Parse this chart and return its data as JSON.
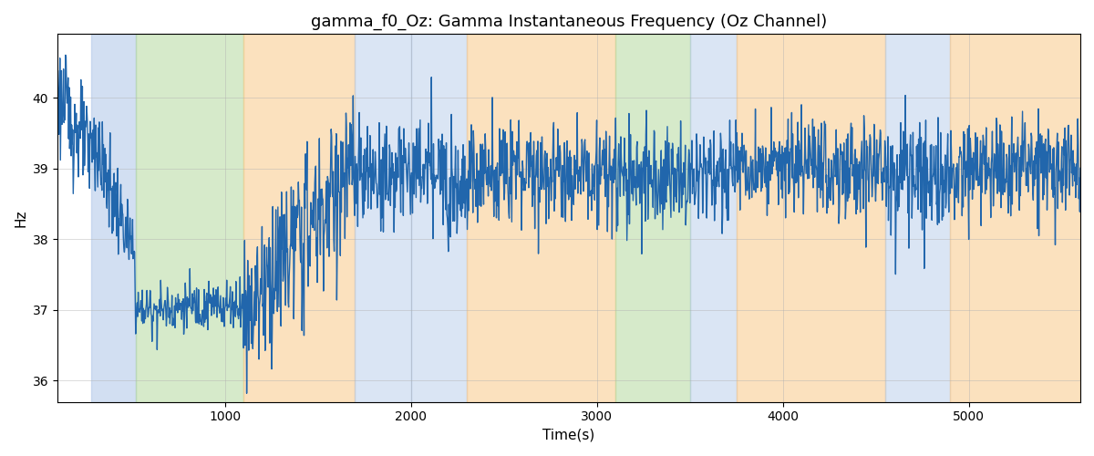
{
  "title": "gamma_f0_Oz: Gamma Instantaneous Frequency (Oz Channel)",
  "xlabel": "Time(s)",
  "ylabel": "Hz",
  "ylim": [
    35.7,
    40.9
  ],
  "xlim": [
    100,
    5600
  ],
  "line_color": "#2166ac",
  "line_width": 1.0,
  "background_color": "#ffffff",
  "grid_color": "#b0b0b0",
  "bands": [
    {
      "xmin": 280,
      "xmax": 520,
      "color": "#aec6e8",
      "alpha": 0.55
    },
    {
      "xmin": 520,
      "xmax": 1100,
      "color": "#b5d9a0",
      "alpha": 0.55
    },
    {
      "xmin": 1100,
      "xmax": 1700,
      "color": "#f9c98a",
      "alpha": 0.55
    },
    {
      "xmin": 1700,
      "xmax": 2000,
      "color": "#aec6e8",
      "alpha": 0.45
    },
    {
      "xmin": 2000,
      "xmax": 2300,
      "color": "#aec6e8",
      "alpha": 0.45
    },
    {
      "xmin": 2300,
      "xmax": 3100,
      "color": "#f9c98a",
      "alpha": 0.55
    },
    {
      "xmin": 3100,
      "xmax": 3500,
      "color": "#b5d9a0",
      "alpha": 0.55
    },
    {
      "xmin": 3500,
      "xmax": 3750,
      "color": "#aec6e8",
      "alpha": 0.45
    },
    {
      "xmin": 3750,
      "xmax": 4550,
      "color": "#f9c98a",
      "alpha": 0.55
    },
    {
      "xmin": 4550,
      "xmax": 4900,
      "color": "#aec6e8",
      "alpha": 0.45
    },
    {
      "xmin": 4900,
      "xmax": 5600,
      "color": "#f9c98a",
      "alpha": 0.55
    }
  ],
  "yticks": [
    36,
    37,
    38,
    39,
    40
  ],
  "xticks": [
    1000,
    2000,
    3000,
    4000,
    5000
  ],
  "seed": 123,
  "n_points": 2000
}
